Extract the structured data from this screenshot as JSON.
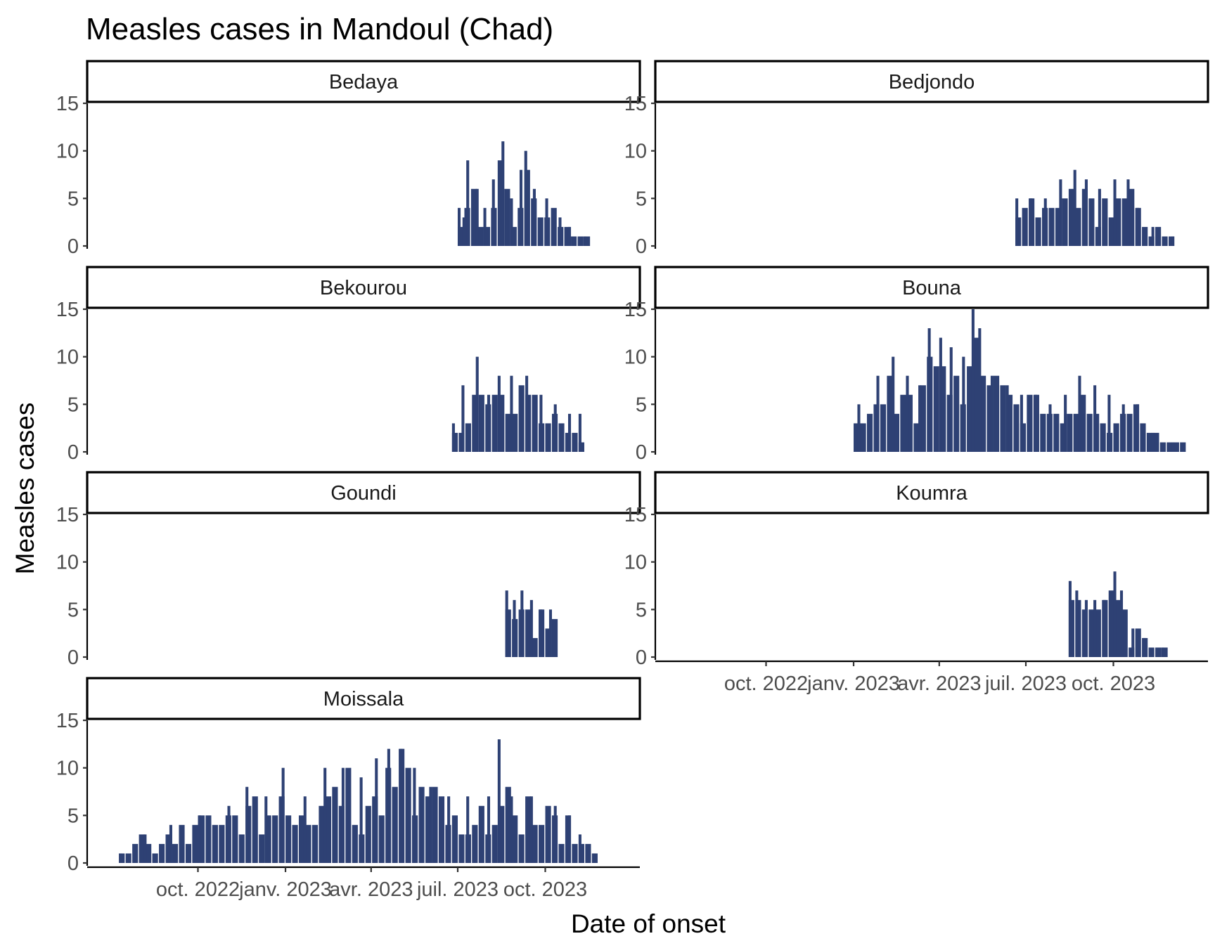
{
  "chart_data": {
    "type": "bar",
    "title": "Measles cases in Mandoul (Chad)",
    "xlabel": "Date of onset",
    "ylabel": "Measles cases",
    "x_range": [
      "2022-07-01",
      "2023-12-15"
    ],
    "ylim": [
      0,
      15
    ],
    "y_ticks": [
      0,
      5,
      10,
      15
    ],
    "x_ticks": [
      {
        "date": "2022-10-01",
        "label": "oct. 2022"
      },
      {
        "date": "2023-01-01",
        "label": "janv. 2023"
      },
      {
        "date": "2023-04-01",
        "label": "avr. 2023"
      },
      {
        "date": "2023-07-01",
        "label": "juil. 2023"
      },
      {
        "date": "2023-10-01",
        "label": "oct. 2023"
      }
    ],
    "grid": false,
    "bar_color": "#2e4174",
    "facets": [
      {
        "name": "Bedaya",
        "x_start": "2023-07-01",
        "x_end": "2023-11-15",
        "peaks": [
          {
            "x": "2023-07-01",
            "y": 4
          },
          {
            "x": "2023-07-06",
            "y": 3
          },
          {
            "x": "2023-07-10",
            "y": 9
          },
          {
            "x": "2023-07-20",
            "y": 6
          },
          {
            "x": "2023-07-28",
            "y": 4
          },
          {
            "x": "2023-08-06",
            "y": 7
          },
          {
            "x": "2023-08-16",
            "y": 11
          },
          {
            "x": "2023-08-25",
            "y": 5
          },
          {
            "x": "2023-09-04",
            "y": 8
          },
          {
            "x": "2023-09-09",
            "y": 10
          },
          {
            "x": "2023-09-18",
            "y": 6
          },
          {
            "x": "2023-10-01",
            "y": 5
          },
          {
            "x": "2023-10-15",
            "y": 3
          },
          {
            "x": "2023-10-25",
            "y": 2
          },
          {
            "x": "2023-11-10",
            "y": 1
          }
        ]
      },
      {
        "name": "Bedjondo",
        "x_start": "2023-06-20",
        "x_end": "2023-12-01",
        "peaks": [
          {
            "x": "2023-06-20",
            "y": 5
          },
          {
            "x": "2023-07-05",
            "y": 5
          },
          {
            "x": "2023-07-20",
            "y": 5
          },
          {
            "x": "2023-08-05",
            "y": 7
          },
          {
            "x": "2023-08-20",
            "y": 8
          },
          {
            "x": "2023-09-01",
            "y": 7
          },
          {
            "x": "2023-09-15",
            "y": 6
          },
          {
            "x": "2023-10-01",
            "y": 7
          },
          {
            "x": "2023-10-15",
            "y": 7
          },
          {
            "x": "2023-10-25",
            "y": 4
          },
          {
            "x": "2023-11-10",
            "y": 2
          },
          {
            "x": "2023-12-01",
            "y": 1
          }
        ]
      },
      {
        "name": "Bekourou",
        "x_start": "2023-06-25",
        "x_end": "2023-11-05",
        "peaks": [
          {
            "x": "2023-06-25",
            "y": 3
          },
          {
            "x": "2023-07-05",
            "y": 7
          },
          {
            "x": "2023-07-20",
            "y": 10
          },
          {
            "x": "2023-08-01",
            "y": 6
          },
          {
            "x": "2023-08-12",
            "y": 8
          },
          {
            "x": "2023-08-25",
            "y": 8
          },
          {
            "x": "2023-09-10",
            "y": 8
          },
          {
            "x": "2023-09-25",
            "y": 6
          },
          {
            "x": "2023-10-10",
            "y": 5
          },
          {
            "x": "2023-10-25",
            "y": 4
          },
          {
            "x": "2023-11-05",
            "y": 4
          }
        ]
      },
      {
        "name": "Bouna",
        "x_start": "2023-01-01",
        "x_end": "2023-12-10",
        "peaks": [
          {
            "x": "2023-01-05",
            "y": 5
          },
          {
            "x": "2023-01-25",
            "y": 8
          },
          {
            "x": "2023-02-10",
            "y": 10
          },
          {
            "x": "2023-02-25",
            "y": 8
          },
          {
            "x": "2023-03-10",
            "y": 7
          },
          {
            "x": "2023-03-20",
            "y": 13
          },
          {
            "x": "2023-04-01",
            "y": 12
          },
          {
            "x": "2023-04-12",
            "y": 11
          },
          {
            "x": "2023-04-25",
            "y": 10
          },
          {
            "x": "2023-05-05",
            "y": 15
          },
          {
            "x": "2023-05-12",
            "y": 13
          },
          {
            "x": "2023-05-25",
            "y": 8
          },
          {
            "x": "2023-06-10",
            "y": 7
          },
          {
            "x": "2023-06-25",
            "y": 6
          },
          {
            "x": "2023-07-10",
            "y": 6
          },
          {
            "x": "2023-07-25",
            "y": 5
          },
          {
            "x": "2023-08-10",
            "y": 6
          },
          {
            "x": "2023-08-25",
            "y": 8
          },
          {
            "x": "2023-09-10",
            "y": 7
          },
          {
            "x": "2023-09-25",
            "y": 6
          },
          {
            "x": "2023-10-10",
            "y": 5
          },
          {
            "x": "2023-10-25",
            "y": 5
          },
          {
            "x": "2023-11-10",
            "y": 2
          },
          {
            "x": "2023-12-01",
            "y": 1
          }
        ]
      },
      {
        "name": "Goundi",
        "x_start": "2023-08-20",
        "x_end": "2023-10-10",
        "peaks": [
          {
            "x": "2023-08-20",
            "y": 7
          },
          {
            "x": "2023-08-28",
            "y": 6
          },
          {
            "x": "2023-09-05",
            "y": 7
          },
          {
            "x": "2023-09-15",
            "y": 6
          },
          {
            "x": "2023-09-25",
            "y": 5
          },
          {
            "x": "2023-10-05",
            "y": 5
          }
        ]
      },
      {
        "name": "Koumra",
        "x_start": "2023-08-15",
        "x_end": "2023-11-25",
        "peaks": [
          {
            "x": "2023-08-15",
            "y": 8
          },
          {
            "x": "2023-08-22",
            "y": 7
          },
          {
            "x": "2023-09-01",
            "y": 6
          },
          {
            "x": "2023-09-10",
            "y": 6
          },
          {
            "x": "2023-09-20",
            "y": 6
          },
          {
            "x": "2023-10-01",
            "y": 9
          },
          {
            "x": "2023-10-08",
            "y": 7
          },
          {
            "x": "2023-10-20",
            "y": 3
          },
          {
            "x": "2023-11-01",
            "y": 2
          },
          {
            "x": "2023-11-20",
            "y": 1
          }
        ]
      },
      {
        "name": "Moissala",
        "x_start": "2022-07-10",
        "x_end": "2023-11-20",
        "peaks": [
          {
            "x": "2022-07-10",
            "y": 1
          },
          {
            "x": "2022-08-05",
            "y": 3
          },
          {
            "x": "2022-09-01",
            "y": 4
          },
          {
            "x": "2022-10-01",
            "y": 5
          },
          {
            "x": "2022-11-01",
            "y": 6
          },
          {
            "x": "2022-11-20",
            "y": 8
          },
          {
            "x": "2022-12-10",
            "y": 7
          },
          {
            "x": "2022-12-28",
            "y": 10
          },
          {
            "x": "2023-01-20",
            "y": 7
          },
          {
            "x": "2023-02-10",
            "y": 10
          },
          {
            "x": "2023-03-01",
            "y": 10
          },
          {
            "x": "2023-03-20",
            "y": 9
          },
          {
            "x": "2023-04-05",
            "y": 11
          },
          {
            "x": "2023-04-18",
            "y": 12
          },
          {
            "x": "2023-05-01",
            "y": 12
          },
          {
            "x": "2023-05-15",
            "y": 10
          },
          {
            "x": "2023-06-01",
            "y": 8
          },
          {
            "x": "2023-06-20",
            "y": 7
          },
          {
            "x": "2023-07-10",
            "y": 7
          },
          {
            "x": "2023-08-01",
            "y": 7
          },
          {
            "x": "2023-08-12",
            "y": 13
          },
          {
            "x": "2023-08-25",
            "y": 7
          },
          {
            "x": "2023-09-15",
            "y": 7
          },
          {
            "x": "2023-10-10",
            "y": 6
          },
          {
            "x": "2023-10-25",
            "y": 5
          },
          {
            "x": "2023-11-05",
            "y": 3
          },
          {
            "x": "2023-11-20",
            "y": 1
          }
        ]
      }
    ]
  }
}
